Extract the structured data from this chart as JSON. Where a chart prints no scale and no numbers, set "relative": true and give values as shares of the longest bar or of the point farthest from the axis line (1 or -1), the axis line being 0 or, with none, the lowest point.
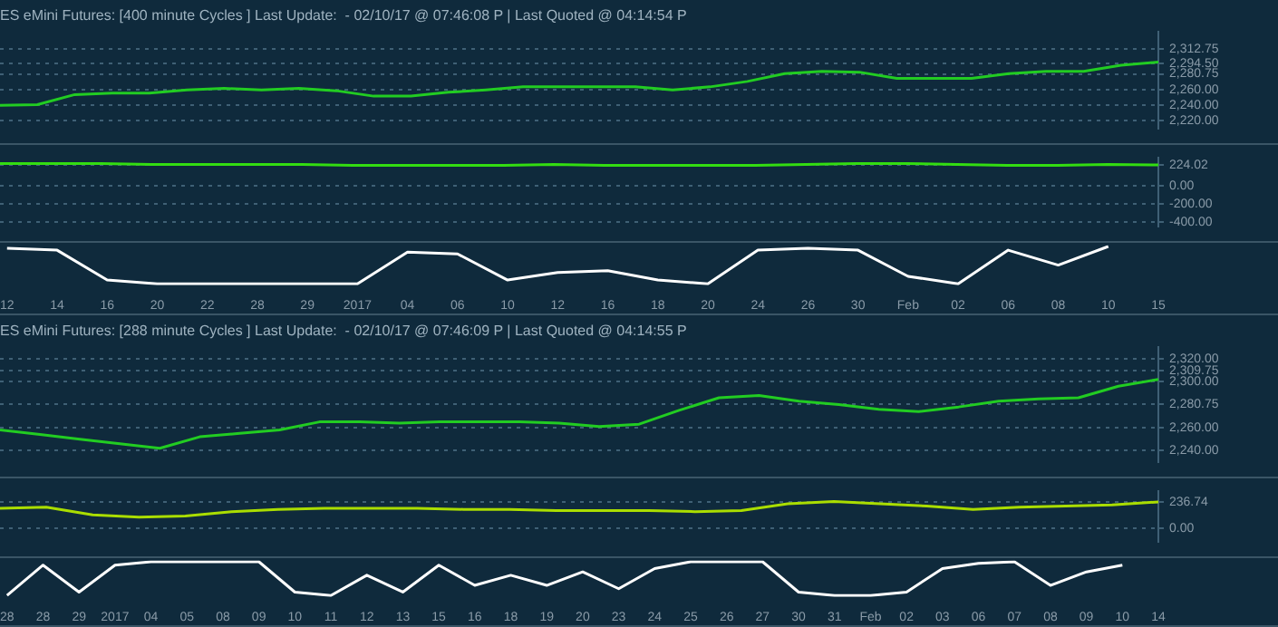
{
  "chart_data": [
    {
      "type": "line",
      "title": "ES eMini Futures: [400 minute Cycles ] Last Update:  - 02/10/17 @ 07:46:08 P | Last Quoted @ 04:14:54 P",
      "categories": [
        null,
        null,
        null,
        null,
        null,
        null,
        null,
        null,
        null,
        null,
        null,
        null,
        null,
        null,
        null,
        null,
        null,
        null,
        null,
        null,
        null,
        null,
        null,
        null,
        null,
        null,
        null,
        null,
        null,
        null,
        null,
        null
      ],
      "values": [
        2240,
        2241,
        2254,
        2256,
        2256,
        2260,
        2262,
        2260,
        2262,
        2259,
        2252,
        2252,
        2257,
        2260,
        2264,
        2264,
        2264,
        2264,
        2260,
        2264,
        2271,
        2281,
        2284,
        2283,
        2275,
        2275,
        2275,
        2281,
        2284,
        2284,
        2292,
        2296
      ],
      "color": "#22cc22",
      "ylim": [
        2210,
        2335
      ],
      "yticks": [
        {
          "value": 2220,
          "label": "2,220.00"
        },
        {
          "value": 2240,
          "label": "2,240.00"
        },
        {
          "value": 2260,
          "label": "2,260.00"
        },
        {
          "value": 2280.75,
          "label": "2,280.75"
        },
        {
          "value": 2294.5,
          "label": "2,294.50"
        },
        {
          "value": 2312.75,
          "label": "2,312.75"
        }
      ],
      "grid": "y",
      "tick_labels": "y"
    },
    {
      "type": "line",
      "categories": [
        null,
        null,
        null,
        null,
        null,
        null,
        null,
        null,
        null,
        null,
        null,
        null,
        null,
        null,
        null,
        null,
        null,
        null,
        null,
        null,
        null,
        null,
        null,
        null
      ],
      "values": [
        240,
        240,
        240,
        230,
        230,
        230,
        230,
        220,
        220,
        220,
        220,
        230,
        220,
        220,
        220,
        220,
        230,
        240,
        240,
        230,
        220,
        220,
        230,
        224.02
      ],
      "color": "#33dd11",
      "ylim": [
        -450,
        300
      ],
      "yticks": [
        {
          "value": -400,
          "label": "-400.00"
        },
        {
          "value": -200,
          "label": "-200.00"
        },
        {
          "value": 0,
          "label": "0.00"
        },
        {
          "value": 224.02,
          "label": "224.02"
        }
      ],
      "grid": "y",
      "tick_labels": "y"
    },
    {
      "type": "line",
      "relative": true,
      "categories": [
        "12",
        "14",
        "16",
        "20",
        "22",
        "28",
        "29",
        "2017",
        "04",
        "06",
        "10",
        "12",
        "16",
        "18",
        "20",
        "24",
        "26",
        "30",
        "Feb",
        "02",
        "06",
        "08",
        "10",
        "15"
      ],
      "values": [
        0.95,
        0.9,
        0.1,
        0,
        0,
        0,
        0,
        0,
        0.85,
        0.8,
        0.1,
        0.3,
        0.35,
        0.1,
        0,
        0.9,
        0.95,
        0.9,
        0.2,
        0,
        0.9,
        0.5,
        1,
        null
      ],
      "color": "#ffffff",
      "tick_labels": "x"
    },
    {
      "type": "line",
      "title": "ES eMini Futures: [288 minute Cycles ] Last Update:  - 02/10/17 @ 07:46:09 P | Last Quoted @ 04:14:55 P",
      "categories": [
        null,
        null,
        null,
        null,
        null,
        null,
        null,
        null,
        null,
        null,
        null,
        null,
        null,
        null,
        null,
        null,
        null,
        null,
        null,
        null,
        null,
        null,
        null,
        null,
        null,
        null,
        null,
        null,
        null,
        null
      ],
      "values": [
        2258,
        2254,
        2250,
        2246,
        2242,
        2252,
        2255,
        2258,
        2265,
        2265,
        2264,
        2265,
        2265,
        2265,
        2264,
        2261,
        2263,
        2275,
        2286,
        2288,
        2283,
        2280,
        2276,
        2274,
        2278,
        2283,
        2285,
        2286,
        2296,
        2302
      ],
      "color": "#22cc22",
      "ylim": [
        2230,
        2330
      ],
      "yticks": [
        {
          "value": 2240,
          "label": "2,240.00"
        },
        {
          "value": 2260,
          "label": "2,260.00"
        },
        {
          "value": 2280.75,
          "label": "2,280.75"
        },
        {
          "value": 2300,
          "label": "2,300.00"
        },
        {
          "value": 2309.75,
          "label": "2,309.75"
        },
        {
          "value": 2320,
          "label": "2,320.00"
        }
      ],
      "grid": "y",
      "tick_labels": "y"
    },
    {
      "type": "line",
      "categories": [
        null,
        null,
        null,
        null,
        null,
        null,
        null,
        null,
        null,
        null,
        null,
        null,
        null,
        null,
        null,
        null,
        null,
        null,
        null,
        null,
        null,
        null,
        null,
        null,
        null,
        null
      ],
      "values": [
        180,
        190,
        120,
        100,
        110,
        150,
        170,
        180,
        180,
        180,
        170,
        170,
        160,
        160,
        160,
        150,
        160,
        220,
        240,
        220,
        200,
        170,
        190,
        200,
        210,
        236.74
      ],
      "color": "#aadd00",
      "ylim": [
        -120,
        330
      ],
      "yticks": [
        {
          "value": 0,
          "label": "0.00"
        },
        {
          "value": 236.74,
          "label": "236.74"
        }
      ],
      "grid": "y",
      "tick_labels": "y"
    },
    {
      "type": "line",
      "relative": true,
      "categories": [
        "28",
        "28",
        "29",
        "2017",
        "04",
        "05",
        "08",
        "09",
        "10",
        "11",
        "12",
        "13",
        "15",
        "16",
        "18",
        "19",
        "20",
        "23",
        "24",
        "25",
        "26",
        "27",
        "30",
        "31",
        "Feb",
        "02",
        "03",
        "06",
        "07",
        "08",
        "09",
        "10",
        "14"
      ],
      "values": [
        0,
        0.9,
        0.1,
        0.9,
        1,
        1,
        1,
        1,
        0.1,
        0,
        0.6,
        0.1,
        0.9,
        0.3,
        0.6,
        0.3,
        0.7,
        0.2,
        0.8,
        1,
        1,
        1,
        0.1,
        0,
        0,
        0.1,
        0.8,
        0.95,
        1,
        0.3,
        0.7,
        0.9,
        null
      ],
      "color": "#ffffff",
      "tick_labels": "x"
    }
  ]
}
